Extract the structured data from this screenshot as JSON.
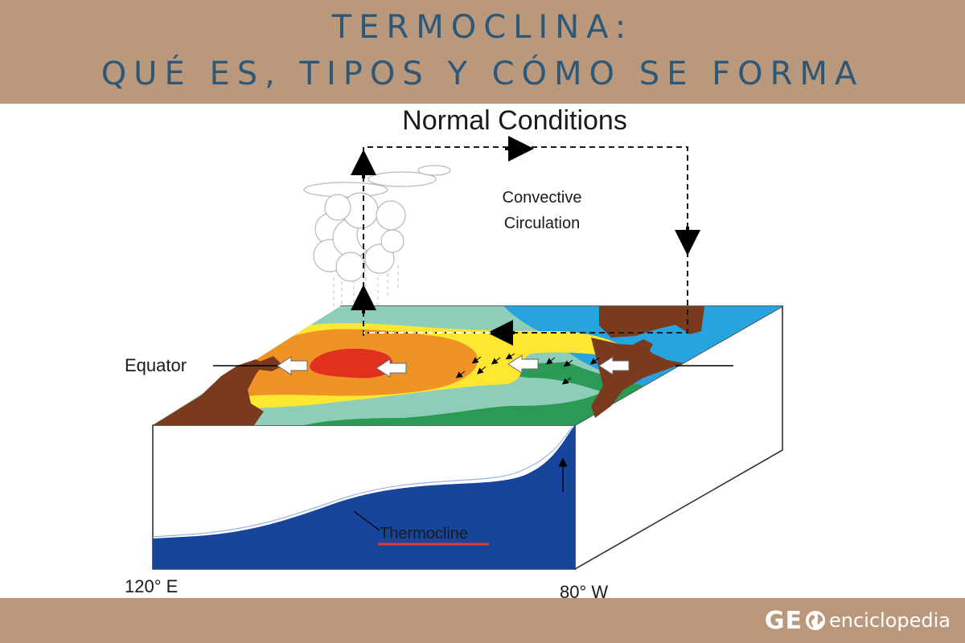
{
  "header": {
    "title_line1": "TERMOCLINA:",
    "title_line2": "QUÉ ES, TIPOS Y CÓMO SE FORMA",
    "background_color": "#b9987c",
    "title_color": "#2d5878"
  },
  "diagram": {
    "title": "Normal Conditions",
    "circulation_label_line1": "Convective",
    "circulation_label_line2": "Circulation",
    "equator_label": "Equator",
    "thermocline_label": "Thermocline",
    "west_longitude": "120° E",
    "east_longitude": "80° W",
    "colors": {
      "land": "#7b3a1e",
      "deep_water": "#17459b",
      "warm_core": "#e0301e",
      "orange": "#ef9327",
      "yellow": "#fde731",
      "green": "#2a9a55",
      "aqua": "#8fcdbb",
      "blue": "#27a3de",
      "underline": "#e03a2e"
    }
  },
  "footer": {
    "logo_bold": "GE",
    "logo_text": "enciclopedia",
    "logo_icon": "globe-icon"
  }
}
